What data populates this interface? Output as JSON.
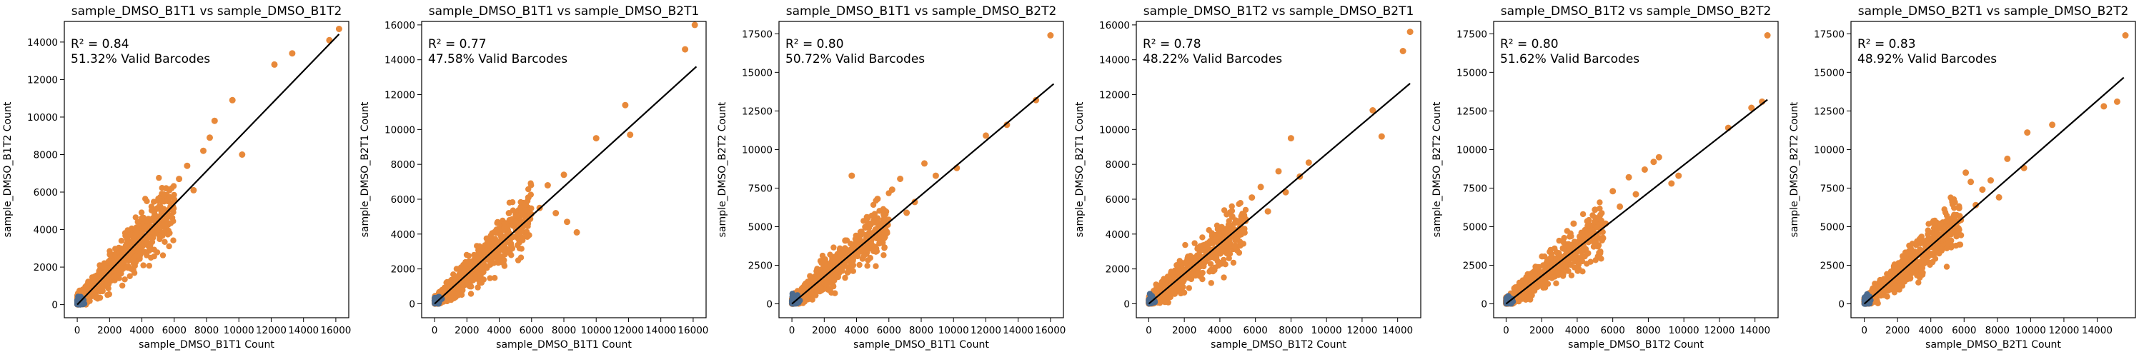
{
  "figure": {
    "colors": {
      "orange": "#e8893a",
      "blue": "#4c6b8f",
      "line": "#000000"
    }
  },
  "chart_data": [
    {
      "type": "scatter",
      "title": "sample_DMSO_B1T1 vs sample_DMSO_B1T2",
      "xlabel": "sample_DMSO_B1T1 Count",
      "ylabel": "sample_DMSO_B1T2 Count",
      "r2_label": "R² = 0.84",
      "valid_label": "51.32% Valid Barcodes",
      "xlim": [
        -800,
        16800
      ],
      "ylim": [
        -700,
        15100
      ],
      "xticks": [
        0,
        2000,
        4000,
        6000,
        8000,
        10000,
        12000,
        14000,
        16000
      ],
      "yticks": [
        0,
        2000,
        4000,
        6000,
        8000,
        10000,
        12000,
        14000
      ],
      "slope": 0.89,
      "fit_x": [
        0,
        16200
      ],
      "points": [
        [
          1700,
          1600
        ],
        [
          2600,
          2500
        ],
        [
          3500,
          3400
        ],
        [
          4000,
          4600
        ],
        [
          4600,
          3900
        ],
        [
          5200,
          5000
        ],
        [
          5500,
          6200
        ],
        [
          6000,
          5600
        ],
        [
          6300,
          6700
        ],
        [
          6800,
          7400
        ],
        [
          7200,
          6100
        ],
        [
          7800,
          8200
        ],
        [
          8200,
          8900
        ],
        [
          8500,
          9800
        ],
        [
          9600,
          10900
        ],
        [
          10200,
          8000
        ],
        [
          12200,
          12800
        ],
        [
          13300,
          13400
        ],
        [
          15600,
          14100
        ],
        [
          16200,
          14700
        ]
      ]
    },
    {
      "type": "scatter",
      "title": "sample_DMSO_B1T1 vs sample_DMSO_B2T1",
      "xlabel": "sample_DMSO_B1T1 Count",
      "ylabel": "sample_DMSO_B2T1 Count",
      "r2_label": "R² = 0.77",
      "valid_label": "47.58% Valid Barcodes",
      "xlim": [
        -800,
        16800
      ],
      "ylim": [
        -800,
        16200
      ],
      "xticks": [
        0,
        2000,
        4000,
        6000,
        8000,
        10000,
        12000,
        14000,
        16000
      ],
      "yticks": [
        0,
        2000,
        4000,
        6000,
        8000,
        10000,
        12000,
        14000,
        16000
      ],
      "slope": 0.84,
      "fit_x": [
        0,
        16200
      ],
      "points": [
        [
          2300,
          2100
        ],
        [
          3300,
          3600
        ],
        [
          4100,
          3200
        ],
        [
          4600,
          5200
        ],
        [
          5300,
          4500
        ],
        [
          5800,
          6100
        ],
        [
          6500,
          5500
        ],
        [
          7000,
          6800
        ],
        [
          7500,
          5200
        ],
        [
          8000,
          7400
        ],
        [
          8200,
          4700
        ],
        [
          8800,
          4100
        ],
        [
          10000,
          9500
        ],
        [
          11800,
          11400
        ],
        [
          12100,
          9700
        ],
        [
          15500,
          14600
        ],
        [
          16100,
          16000
        ]
      ]
    },
    {
      "type": "scatter",
      "title": "sample_DMSO_B1T1 vs sample_DMSO_B2T2",
      "xlabel": "sample_DMSO_B1T1 Count",
      "ylabel": "sample_DMSO_B2T2 Count",
      "r2_label": "R² = 0.80",
      "valid_label": "50.72% Valid Barcodes",
      "xlim": [
        -800,
        16800
      ],
      "ylim": [
        -900,
        18300
      ],
      "xticks": [
        0,
        2000,
        4000,
        6000,
        8000,
        10000,
        12000,
        14000,
        16000
      ],
      "yticks": [
        0,
        2500,
        5000,
        7500,
        10000,
        12500,
        15000,
        17500
      ],
      "slope": 0.88,
      "fit_x": [
        0,
        16200
      ],
      "points": [
        [
          2600,
          2700
        ],
        [
          3300,
          4100
        ],
        [
          3700,
          8300
        ],
        [
          4200,
          3400
        ],
        [
          4700,
          5600
        ],
        [
          5300,
          6800
        ],
        [
          5800,
          4600
        ],
        [
          6200,
          7400
        ],
        [
          6700,
          8100
        ],
        [
          7100,
          5900
        ],
        [
          7600,
          6600
        ],
        [
          8200,
          9100
        ],
        [
          8900,
          8300
        ],
        [
          10200,
          8800
        ],
        [
          12000,
          10900
        ],
        [
          13300,
          11600
        ],
        [
          15100,
          13200
        ],
        [
          16000,
          17400
        ]
      ]
    },
    {
      "type": "scatter",
      "title": "sample_DMSO_B1T2 vs sample_DMSO_B2T1",
      "xlabel": "sample_DMSO_B1T2 Count",
      "ylabel": "sample_DMSO_B2T1 Count",
      "r2_label": "R² = 0.78",
      "valid_label": "48.22% Valid Barcodes",
      "xlim": [
        -700,
        15300
      ],
      "ylim": [
        -800,
        16200
      ],
      "xticks": [
        0,
        2000,
        4000,
        6000,
        8000,
        10000,
        12000,
        14000
      ],
      "yticks": [
        0,
        2000,
        4000,
        6000,
        8000,
        10000,
        12000,
        14000,
        16000
      ],
      "slope": 0.86,
      "fit_x": [
        0,
        14700
      ],
      "points": [
        [
          2100,
          2400
        ],
        [
          2900,
          3300
        ],
        [
          3500,
          2800
        ],
        [
          4100,
          4400
        ],
        [
          4700,
          5000
        ],
        [
          5300,
          4200
        ],
        [
          5800,
          6100
        ],
        [
          6300,
          6700
        ],
        [
          6700,
          5300
        ],
        [
          7300,
          7600
        ],
        [
          7700,
          6400
        ],
        [
          8000,
          9500
        ],
        [
          8500,
          7300
        ],
        [
          9000,
          8100
        ],
        [
          12600,
          11100
        ],
        [
          13100,
          9600
        ],
        [
          14300,
          14500
        ],
        [
          14700,
          15600
        ]
      ]
    },
    {
      "type": "scatter",
      "title": "sample_DMSO_B1T2 vs sample_DMSO_B2T2",
      "xlabel": "sample_DMSO_B1T2 Count",
      "ylabel": "sample_DMSO_B2T2 Count",
      "r2_label": "R² = 0.80",
      "valid_label": "51.62% Valid Barcodes",
      "xlim": [
        -700,
        15300
      ],
      "ylim": [
        -900,
        18300
      ],
      "xticks": [
        0,
        2000,
        4000,
        6000,
        8000,
        10000,
        12000,
        14000
      ],
      "yticks": [
        0,
        2500,
        5000,
        7500,
        10000,
        12500,
        15000,
        17500
      ],
      "slope": 0.9,
      "fit_x": [
        0,
        14700
      ],
      "points": [
        [
          2300,
          2700
        ],
        [
          3200,
          3600
        ],
        [
          3800,
          5200
        ],
        [
          4400,
          4300
        ],
        [
          5000,
          6100
        ],
        [
          5600,
          5200
        ],
        [
          6000,
          7300
        ],
        [
          6400,
          6300
        ],
        [
          6900,
          8200
        ],
        [
          7300,
          7100
        ],
        [
          7800,
          8700
        ],
        [
          8300,
          9200
        ],
        [
          8600,
          9500
        ],
        [
          9300,
          7800
        ],
        [
          9700,
          8300
        ],
        [
          12500,
          11400
        ],
        [
          13800,
          12700
        ],
        [
          14400,
          13100
        ],
        [
          14700,
          17400
        ]
      ]
    },
    {
      "type": "scatter",
      "title": "sample_DMSO_B2T1 vs sample_DMSO_B2T2",
      "xlabel": "sample_DMSO_B2T1 Count",
      "ylabel": "sample_DMSO_B2T2 Count",
      "r2_label": "R² = 0.83",
      "valid_label": "48.92% Valid Barcodes",
      "xlim": [
        -800,
        16300
      ],
      "ylim": [
        -900,
        18300
      ],
      "xticks": [
        0,
        2000,
        4000,
        6000,
        8000,
        10000,
        12000,
        14000
      ],
      "yticks": [
        0,
        2500,
        5000,
        7500,
        10000,
        12500,
        15000,
        17500
      ],
      "slope": 0.94,
      "fit_x": [
        0,
        15600
      ],
      "points": [
        [
          2200,
          2600
        ],
        [
          2900,
          3300
        ],
        [
          3500,
          4100
        ],
        [
          4100,
          3800
        ],
        [
          4600,
          5200
        ],
        [
          5200,
          4500
        ],
        [
          5700,
          6200
        ],
        [
          6100,
          8500
        ],
        [
          6400,
          7900
        ],
        [
          6700,
          6400
        ],
        [
          7100,
          7400
        ],
        [
          7600,
          8000
        ],
        [
          8100,
          6900
        ],
        [
          8600,
          9400
        ],
        [
          9600,
          8800
        ],
        [
          9800,
          11100
        ],
        [
          11300,
          11600
        ],
        [
          14400,
          12800
        ],
        [
          15200,
          13100
        ],
        [
          15700,
          17400
        ]
      ]
    }
  ]
}
